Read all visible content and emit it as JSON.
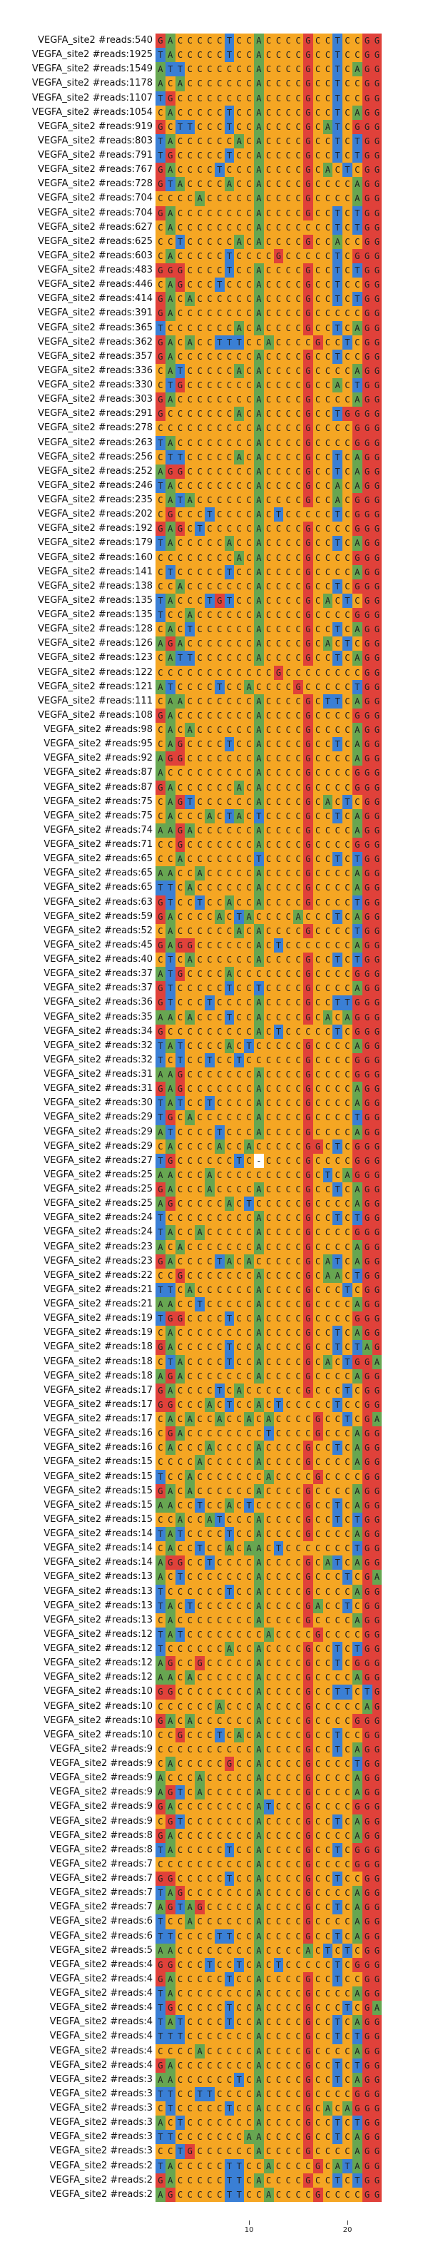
{
  "rows": [
    {
      "label": "VEGFA_site2 #reads:540",
      "seq": "GACCCCCTCCACCCCGCCTCCGG"
    },
    {
      "label": "VEGFA_site2 #reads:1925",
      "seq": "TACCCCCTCCACCCCGCCTCCGG"
    },
    {
      "label": "VEGFA_site2 #reads:1549",
      "seq": "ATTCCCCCCCACCCCGCCTCAGG"
    },
    {
      "label": "VEGFA_site2 #reads:1178",
      "seq": "ACACCCCCCCACCCCGCCTCCGG"
    },
    {
      "label": "VEGFA_site2 #reads:1107",
      "seq": "TGCCCCCCCCACCCCGCCTCCGG"
    },
    {
      "label": "VEGFA_site2 #reads:1054",
      "seq": "CACCCCCTCCACCCCGCCTCAGG"
    },
    {
      "label": "VEGFA_site2 #reads:919",
      "seq": "GCTTCCCTCCACCCCGCATCGGG"
    },
    {
      "label": "VEGFA_site2 #reads:803",
      "seq": "TACCCCCCACACCCCGCCTCTGG"
    },
    {
      "label": "VEGFA_site2 #reads:791",
      "seq": "TGCCCCCTCCACCCCGCCTCTGG"
    },
    {
      "label": "VEGFA_site2 #reads:767",
      "seq": "GACCCCTCCCACCCCGCACTCGG"
    },
    {
      "label": "VEGFA_site2 #reads:728",
      "seq": "GTACCCCACCACCCCGCCCCAGG"
    },
    {
      "label": "VEGFA_site2 #reads:704",
      "seq": "CCCCACCCCCACCCCGCCCCAGG"
    },
    {
      "label": "VEGFA_site2 #reads:704",
      "seq": "GACCCCCCCCACCCCGCCTCTGG"
    },
    {
      "label": "VEGFA_site2 #reads:627",
      "seq": "CACCCCCCCCACCCCCCCTCTGG"
    },
    {
      "label": "VEGFA_site2 #reads:625",
      "seq": "CCTCCCCCACACCCCGCCACCGG"
    },
    {
      "label": "VEGFA_site2 #reads:603",
      "seq": "CACCCCCTCCCCGCCCCCTCGGG"
    },
    {
      "label": "VEGFA_site2 #reads:483",
      "seq": "GGGCCCCTCCACCCCGCCTCTGG"
    },
    {
      "label": "VEGFA_site2 #reads:446",
      "seq": "CAGCCCTCCCACCCCGCCTCCGG"
    },
    {
      "label": "VEGFA_site2 #reads:414",
      "seq": "GACACCCCCCACCCCGCCTCTGG"
    },
    {
      "label": "VEGFA_site2 #reads:391",
      "seq": "GACCCCCCCCACCCCGCCCCCGG"
    },
    {
      "label": "VEGFA_site2 #reads:365",
      "seq": "TCCCCCCCACACCCCGCCTCAGG"
    },
    {
      "label": "VEGFA_site2 #reads:362",
      "seq": "GACACCTTTCCACCCCGCCTCGG"
    },
    {
      "label": "VEGFA_site2 #reads:357",
      "seq": "GACCCCCCCCACCCCGCCTCCGG"
    },
    {
      "label": "VEGFA_site2 #reads:336",
      "seq": "CATCCCCCACACCCCGCCCCAGG"
    },
    {
      "label": "VEGFA_site2 #reads:330",
      "seq": "CTGCCCCCCCACCCCGCCACTGG"
    },
    {
      "label": "VEGFA_site2 #reads:303",
      "seq": "GACCCCCCCCACCCCGCCCCAGG"
    },
    {
      "label": "VEGFA_site2 #reads:291",
      "seq": "GCCCCCCCACACCCCGCCTGGGG"
    },
    {
      "label": "VEGFA_site2 #reads:278",
      "seq": "CCCCCCCCCCACCCCGCCCCGGG"
    },
    {
      "label": "VEGFA_site2 #reads:263",
      "seq": "TACCCCCCCCACCCCGCCCCGGG"
    },
    {
      "label": "VEGFA_site2 #reads:256",
      "seq": "CTTCCCCCACACCCCGCCTCAGG"
    },
    {
      "label": "VEGFA_site2 #reads:252",
      "seq": "AGGCCCCCCCACCCCGCCTCAGG"
    },
    {
      "label": "VEGFA_site2 #reads:246",
      "seq": "TACCCCCCCCACCCCGCCACAGG"
    },
    {
      "label": "VEGFA_site2 #reads:235",
      "seq": "CATACCCCCCACCCCGCCACGGG"
    },
    {
      "label": "VEGFA_site2 #reads:202",
      "seq": "CGCCCTCCCCACTCCCCCTCGGG"
    },
    {
      "label": "VEGFA_site2 #reads:192",
      "seq": "GAGCTCCCCCACCCCGCCCCGGG"
    },
    {
      "label": "VEGFA_site2 #reads:179",
      "seq": "TACCCCCACCACCCCGCCTCAGG"
    },
    {
      "label": "VEGFA_site2 #reads:160",
      "seq": "CCCCCCCCACACCCCGCCCCGGG"
    },
    {
      "label": "VEGFA_site2 #reads:141",
      "seq": "CTCCCCCTCCACCCCGCCCCAGG"
    },
    {
      "label": "VEGFA_site2 #reads:138",
      "seq": "CCACCCCCCCACCCCGCCTCGGG"
    },
    {
      "label": "VEGFA_site2 #reads:135",
      "seq": "TACCCTGTCCACCCCGCACTCGG"
    },
    {
      "label": "VEGFA_site2 #reads:135",
      "seq": "TCCACCCCCCACCCCGCCCCGGG"
    },
    {
      "label": "VEGFA_site2 #reads:128",
      "seq": "CACTCCCCCCACCCCGCCTCAGG"
    },
    {
      "label": "VEGFA_site2 #reads:126",
      "seq": "AGACCCCCCCACCCCGCACTCGG"
    },
    {
      "label": "VEGFA_site2 #reads:123",
      "seq": "CATTCCCCCCACCCCGCCTCAGG"
    },
    {
      "label": "VEGFA_site2 #reads:122",
      "seq": "CCCCCCCCCCCCGCCCCCCCCGG"
    },
    {
      "label": "VEGFA_site2 #reads:121",
      "seq": "ATCCCCTCCACCCCGCCCCCTGG"
    },
    {
      "label": "VEGFA_site2 #reads:111",
      "seq": "CAACCCCCCCACCCCGCTTCAGG"
    },
    {
      "label": "VEGFA_site2 #reads:108",
      "seq": "GACCCCCCCCACCCCGCCCCGGG"
    },
    {
      "label": "VEGFA_site2 #reads:98",
      "seq": "CACACCCCCCACCCCGCCCCAGG"
    },
    {
      "label": "VEGFA_site2 #reads:95",
      "seq": "CAGCCCCTCCACCCCGCCTCAGG"
    },
    {
      "label": "VEGFA_site2 #reads:92",
      "seq": "AGGCCCCCCCACCCCGCCCCAGG"
    },
    {
      "label": "VEGFA_site2 #reads:87",
      "seq": "ACCCCCCCCCACCCCGCCCCGGG"
    },
    {
      "label": "VEGFA_site2 #reads:87",
      "seq": "GACCCCCCACACCCCGCCCCGGG"
    },
    {
      "label": "VEGFA_site2 #reads:75",
      "seq": "CAGTCCCCCCACCCCGCACTCGG"
    },
    {
      "label": "VEGFA_site2 #reads:75",
      "seq": "CACCCACTACTCCCCGCCTCAGG"
    },
    {
      "label": "VEGFA_site2 #reads:74",
      "seq": "AAGACCCCCCACCCCGCCCCAGG"
    },
    {
      "label": "VEGFA_site2 #reads:71",
      "seq": "CCGCCCCCCCACCCCGCCCCGGG"
    },
    {
      "label": "VEGFA_site2 #reads:65",
      "seq": "CCACCCCCCCTCCCCGCCTCTGG"
    },
    {
      "label": "VEGFA_site2 #reads:65",
      "seq": "AACCACCCCCACCCCGCCCCAGG"
    },
    {
      "label": "VEGFA_site2 #reads:65",
      "seq": "TTCACCCCCCACCCCGCCCCAGG"
    },
    {
      "label": "VEGFA_site2 #reads:63",
      "seq": "GTCCTCCACCACCCCGCCCCTGG"
    },
    {
      "label": "VEGFA_site2 #reads:59",
      "seq": "GACCCCACTACCCCACCCTCAGG"
    },
    {
      "label": "VEGFA_site2 #reads:52",
      "seq": "CACCCCCCACACCCCGCCCCTGG"
    },
    {
      "label": "VEGFA_site2 #reads:45",
      "seq": "GAGGCCCCCCACTCCCCCCCAGG"
    },
    {
      "label": "VEGFA_site2 #reads:40",
      "seq": "CTCACCCCCCACCCCGCCTCTGG"
    },
    {
      "label": "VEGFA_site2 #reads:37",
      "seq": "ATGCCCCACCCCCCCGCCCCGGG"
    },
    {
      "label": "VEGFA_site2 #reads:37",
      "seq": "GTCCCCCTCCTCCCCGCCCCAGG"
    },
    {
      "label": "VEGFA_site2 #reads:36",
      "seq": "GTCCCTCCCCACCCCGCCTTGGG"
    },
    {
      "label": "VEGFA_site2 #reads:35",
      "seq": "AACACCCTCCACCCCGCACAGGG"
    },
    {
      "label": "VEGFA_site2 #reads:34",
      "seq": "GCCCCCCCCCACTCCCCCTCGGG"
    },
    {
      "label": "VEGFA_site2 #reads:32",
      "seq": "TATCCCCACTCCCCCGCCCCAGG"
    },
    {
      "label": "VEGFA_site2 #reads:32",
      "seq": "TCTCCTCCTCCCCCCGCCCCGGG"
    },
    {
      "label": "VEGFA_site2 #reads:31",
      "seq": "AAGCCCCCCCACCCCGCCCCGGG"
    },
    {
      "label": "VEGFA_site2 #reads:31",
      "seq": "GAGCCCCCCCACCCCGCCCCAGG"
    },
    {
      "label": "VEGFA_site2 #reads:30",
      "seq": "TATCCTCCCCACCCCGCCCCAGG"
    },
    {
      "label": "VEGFA_site2 #reads:29",
      "seq": "TGCACCCCCCACCCCGCCCCTGG"
    },
    {
      "label": "VEGFA_site2 #reads:29",
      "seq": "ATCCCCTCCCACCCCGCCCCAGG"
    },
    {
      "label": "VEGFA_site2 #reads:29",
      "seq": "CACCCCACCACCCCCGGCTCGGG"
    },
    {
      "label": "VEGFA_site2 #reads:27",
      "seq": "TGCCCCCCTC-CCCCGCCCCGGG"
    },
    {
      "label": "VEGFA_site2 #reads:25",
      "seq": "AACCCACCCCCCCCCGCTCAGGG"
    },
    {
      "label": "VEGFA_site2 #reads:25",
      "seq": "GACCCACCCCACCCCGCCTCAGG"
    },
    {
      "label": "VEGFA_site2 #reads:25",
      "seq": "AGCCCCCACTCCCCCGCCCCAGG"
    },
    {
      "label": "VEGFA_site2 #reads:24",
      "seq": "TCCCCCCCCCACCCCGCCTCTGG"
    },
    {
      "label": "VEGFA_site2 #reads:24",
      "seq": "TACCACCCCCACCCCGCCCCGGG"
    },
    {
      "label": "VEGFA_site2 #reads:23",
      "seq": "ACACCCCCCCACCCCGCCCCAGG"
    },
    {
      "label": "VEGFA_site2 #reads:23",
      "seq": "GACCCCTACACCCCCGCATCAGG"
    },
    {
      "label": "VEGFA_site2 #reads:22",
      "seq": "CCGCCCCCCCACCCCGCAACTGG"
    },
    {
      "label": "VEGFA_site2 #reads:21",
      "seq": "TTCACCCCCCACCCCGCCCTCGG"
    },
    {
      "label": "VEGFA_site2 #reads:21",
      "seq": "AACCTCCCCCACCCCGCCCCAGG"
    },
    {
      "label": "VEGFA_site2 #reads:19",
      "seq": "TGGCCCCTCCACCCCGCCCCGGG"
    },
    {
      "label": "VEGFA_site2 #reads:19",
      "seq": "CACCCCCCCCACCCCGCCTCAGG"
    },
    {
      "label": "VEGFA_site2 #reads:18",
      "seq": "GACCCCCTCCACCCCGCCTCTAG"
    },
    {
      "label": "VEGFA_site2 #reads:18",
      "seq": "CTACCCCTCCACCCCGCACTGGA"
    },
    {
      "label": "VEGFA_site2 #reads:18",
      "seq": "AGACCCCCCCACCCCGCCCCAGG"
    },
    {
      "label": "VEGFA_site2 #reads:17",
      "seq": "GACCCCTCACCCCCCGCCCTCGG"
    },
    {
      "label": "VEGFA_site2 #reads:17",
      "seq": "GGCCCACTCCACTCCCCCTCCGG"
    },
    {
      "label": "VEGFA_site2 #reads:17",
      "seq": "CACACCACCACACCCCGCCTCGA"
    },
    {
      "label": "VEGFA_site2 #reads:16",
      "seq": "CGACCCCCCCCTCCCCGCCCAGG"
    },
    {
      "label": "VEGFA_site2 #reads:16",
      "seq": "CACCCACCCCACCCCGCCTCAGG"
    },
    {
      "label": "VEGFA_site2 #reads:15",
      "seq": "CCCCACCCCCACCCCGCCCCAGG"
    },
    {
      "label": "VEGFA_site2 #reads:15",
      "seq": "TCCACCCCCCCACCCCGCCCCGG"
    },
    {
      "label": "VEGFA_site2 #reads:15",
      "seq": "GACACCCCCCACCCCGCCCCAGG"
    },
    {
      "label": "VEGFA_site2 #reads:15",
      "seq": "AACCTCCACTCCCCCGCCTCAGG"
    },
    {
      "label": "VEGFA_site2 #reads:15",
      "seq": "CCACCATCCCACCCCGCCTCTGG"
    },
    {
      "label": "VEGFA_site2 #reads:14",
      "seq": "TATCCCCTCCACCCCGCCCCAGG"
    },
    {
      "label": "VEGFA_site2 #reads:14",
      "seq": "CACCTCCACAACTCCCCCCCTGG"
    },
    {
      "label": "VEGFA_site2 #reads:14",
      "seq": "AGGCCTCCCCACCCCGCATCAGG"
    },
    {
      "label": "VEGFA_site2 #reads:13",
      "seq": "ACTCCCCCCCACCCCGCCCTCGA"
    },
    {
      "label": "VEGFA_site2 #reads:13",
      "seq": "TCCCCCCTCCACCCCGCCCCAGG"
    },
    {
      "label": "VEGFA_site2 #reads:13",
      "seq": "TACTCCCCCCACCCCGACCTCGG"
    },
    {
      "label": "VEGFA_site2 #reads:13",
      "seq": "CACCCCCCCCACCCCGCCCCAGG"
    },
    {
      "label": "VEGFA_site2 #reads:12",
      "seq": "TATCCCCCCCCACCCCGCCCCGG"
    },
    {
      "label": "VEGFA_site2 #reads:12",
      "seq": "TCCCCCCACCACCCCGCCTCTGG"
    },
    {
      "label": "VEGFA_site2 #reads:12",
      "seq": "AGCCGCCCCCACCCCGCCTCGGG"
    },
    {
      "label": "VEGFA_site2 #reads:12",
      "seq": "AACACCCCCCACCCCGCCCCAGG"
    },
    {
      "label": "VEGFA_site2 #reads:10",
      "seq": "GGCCCCCCCCACCCCGCCTTCTG"
    },
    {
      "label": "VEGFA_site2 #reads:10",
      "seq": "CCCCCCACCCACCCCGCCCCCAG"
    },
    {
      "label": "VEGFA_site2 #reads:10",
      "seq": "GACACCCCCCACCCCGCCCCGGG"
    },
    {
      "label": "VEGFA_site2 #reads:10",
      "seq": "CCGCCCTCACACCCCGCCTCCGG"
    },
    {
      "label": "VEGFA_site2 #reads:9",
      "seq": "CCCCCCCCCCACCCCGCCTCAGG"
    },
    {
      "label": "VEGFA_site2 #reads:9",
      "seq": "CACCCCCGCCACCCCGCCCCTGG"
    },
    {
      "label": "VEGFA_site2 #reads:9",
      "seq": "ACCCACCCCCACCCCGCCCCAGG"
    },
    {
      "label": "VEGFA_site2 #reads:9",
      "seq": "AGTCACCCCCACCCCGCCCCAGG"
    },
    {
      "label": "VEGFA_site2 #reads:9",
      "seq": "GACCCCCCCCATCCCGCCCCGGG"
    },
    {
      "label": "VEGFA_site2 #reads:9",
      "seq": "CGTCCCCCCCACCCCGCCTCAGG"
    },
    {
      "label": "VEGFA_site2 #reads:8",
      "seq": "GACCCCCCCCACCCCGCCCCAGG"
    },
    {
      "label": "VEGFA_site2 #reads:8",
      "seq": "TACCCCCTCCACCCCGCCTCGGG"
    },
    {
      "label": "VEGFA_site2 #reads:7",
      "seq": "CCCCCCCCCCACCCCGCCCCGGG"
    },
    {
      "label": "VEGFA_site2 #reads:7",
      "seq": "GGCCCCCTCCACCCCGCCTCCGG"
    },
    {
      "label": "VEGFA_site2 #reads:7",
      "seq": "TAGCCCCCCCACCCCGCCCCAGG"
    },
    {
      "label": "VEGFA_site2 #reads:7",
      "seq": "AGTAGCCCCCACCCCGCCTCAGG"
    },
    {
      "label": "VEGFA_site2 #reads:6",
      "seq": "TCCACCCCCCACCCCGCCCCAGG"
    },
    {
      "label": "VEGFA_site2 #reads:6",
      "seq": "TTCCCCTTCCACCCCGCCTCAGG"
    },
    {
      "label": "VEGFA_site2 #reads:5",
      "seq": "AACCCCCCCCACCCCACTCTCGG"
    },
    {
      "label": "VEGFA_site2 #reads:4",
      "seq": "GGCCCTCCTCACTCCCCCTCGGG"
    },
    {
      "label": "VEGFA_site2 #reads:4",
      "seq": "GACCCCCTCCACCCCGCCTCCGG"
    },
    {
      "label": "VEGFA_site2 #reads:4",
      "seq": "TACCCCCCCCACCCCGCCCCAGG"
    },
    {
      "label": "VEGFA_site2 #reads:4",
      "seq": "TGCCCCCTCCACCCCGCCCTCGA"
    },
    {
      "label": "VEGFA_site2 #reads:4",
      "seq": "TATCCCCTCCACCCCGCCTCAGG"
    },
    {
      "label": "VEGFA_site2 #reads:4",
      "seq": "TTTCCCCCCCACCCCGCCTCTGG"
    },
    {
      "label": "VEGFA_site2 #reads:4",
      "seq": "CCCCACCCCCACCCCGCCCCAGG"
    },
    {
      "label": "VEGFA_site2 #reads:4",
      "seq": "GACCCCCCCCACCCCGCCTCTGG"
    },
    {
      "label": "VEGFA_site2 #reads:3",
      "seq": "AACCCCCCTCACCCCGCCTCAGG"
    },
    {
      "label": "VEGFA_site2 #reads:3",
      "seq": "TTCCTTCCCCACCCCGCCCCGGG"
    },
    {
      "label": "VEGFA_site2 #reads:3",
      "seq": "CTCCCCCTCCACCCCGCACAGGG"
    },
    {
      "label": "VEGFA_site2 #reads:3",
      "seq": "ACTCCCCCCCACCCCGCCTCTGG"
    },
    {
      "label": "VEGFA_site2 #reads:3",
      "seq": "TTCCCCCCCAACCCCGCCTCAGG"
    },
    {
      "label": "VEGFA_site2 #reads:3",
      "seq": "CCTGCCCCCCACCCCGCCCCAGG"
    },
    {
      "label": "VEGFA_site2 #reads:2",
      "seq": "TACCCCCTTCCACCCCGCATAGG"
    },
    {
      "label": "VEGFA_site2 #reads:2",
      "seq": "GACCCCCTTCACCCCGCCTCTGG"
    },
    {
      "label": "VEGFA_site2 #reads:2",
      "seq": "AGCCCCCTTCCACCCCGCCCCGG"
    }
  ],
  "axis": {
    "ticks": [
      {
        "pos": 10,
        "label": "10"
      },
      {
        "pos": 20,
        "label": "20"
      }
    ]
  },
  "colors": {
    "A": "#67a651",
    "C": "#f5a623",
    "G": "#e0413a",
    "T": "#3a7fd5",
    "-": "#ffffff"
  }
}
